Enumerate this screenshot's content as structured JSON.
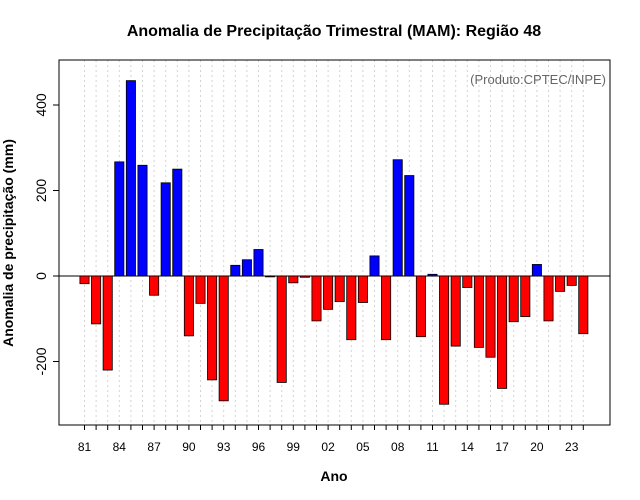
{
  "chart_data": {
    "type": "bar",
    "title": "Anomalia de Precipitação Trimestral (MAM): Região 48",
    "xlabel": "Ano",
    "ylabel": "Anomalia de precipitação (mm)",
    "credit": "(Produto:CPTEC/INPE)",
    "ylim": [
      -350,
      510
    ],
    "yticks": [
      -200,
      0,
      200,
      400
    ],
    "grid": true,
    "positive_color": "#0000ff",
    "negative_color": "#ff0000",
    "categories": [
      "81",
      "82",
      "83",
      "84",
      "85",
      "86",
      "87",
      "88",
      "89",
      "90",
      "91",
      "92",
      "93",
      "94",
      "95",
      "96",
      "97",
      "98",
      "99",
      "00",
      "01",
      "02",
      "03",
      "04",
      "05",
      "06",
      "07",
      "08",
      "09",
      "10",
      "11",
      "12",
      "13",
      "14",
      "15",
      "16",
      "17",
      "18",
      "19",
      "20",
      "21",
      "22",
      "23",
      "24"
    ],
    "xtick_labels": [
      "81",
      "84",
      "87",
      "90",
      "93",
      "96",
      "99",
      "02",
      "05",
      "08",
      "11",
      "14",
      "17",
      "20",
      "23"
    ],
    "values": [
      -18,
      -112,
      -220,
      267,
      457,
      259,
      -45,
      218,
      250,
      -140,
      -64,
      -243,
      -292,
      25,
      38,
      62,
      -2,
      -249,
      -16,
      -3,
      -105,
      -78,
      -60,
      -149,
      -62,
      47,
      -149,
      272,
      235,
      -142,
      4,
      -300,
      -164,
      -27,
      -167,
      -190,
      -263,
      -107,
      -95,
      27,
      -105,
      -36,
      -22,
      -135
    ]
  }
}
